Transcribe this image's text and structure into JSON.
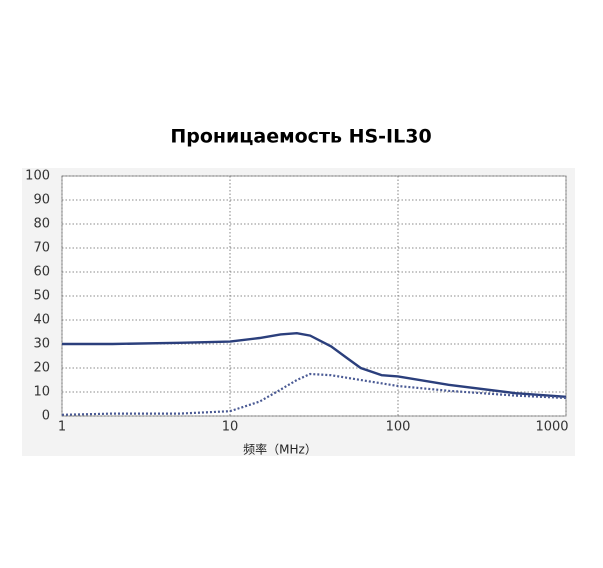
{
  "chart_data": {
    "type": "line",
    "title": "Проницаемость HS-IL30",
    "x_label": "频率（MHz）",
    "log_x": true,
    "grid": true,
    "xlim": [
      1,
      1000
    ],
    "xticks": [
      1,
      10,
      100,
      1000
    ],
    "ylim": [
      0,
      100
    ],
    "yticks": [
      0,
      10,
      20,
      30,
      40,
      50,
      60,
      70,
      80,
      90,
      100
    ],
    "series": [
      {
        "color": "#2b3f7c",
        "dash": false,
        "x": [
          1,
          2,
          5,
          10,
          15,
          20,
          25,
          30,
          40,
          50,
          60,
          80,
          100,
          200,
          500,
          1000
        ],
        "values": [
          30,
          30,
          30.5,
          31,
          32.5,
          34,
          34.5,
          33.5,
          29,
          24,
          20,
          17,
          16.5,
          13,
          9.5,
          8
        ]
      },
      {
        "color": "#4a5a94",
        "dash": true,
        "x": [
          1,
          2,
          5,
          10,
          15,
          20,
          25,
          30,
          40,
          60,
          100,
          200,
          500,
          1000
        ],
        "values": [
          0.5,
          1,
          1,
          2,
          6,
          11,
          15,
          17.5,
          17,
          15,
          12.5,
          10.5,
          8.5,
          7.5
        ]
      }
    ]
  }
}
